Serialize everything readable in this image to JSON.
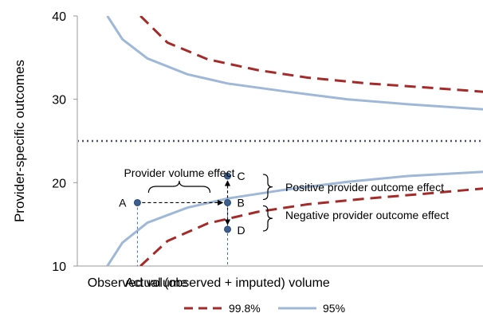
{
  "chart_data": {
    "type": "line",
    "title": "",
    "ylabel": "Provider-specific outcomes",
    "ylim": [
      10,
      40
    ],
    "y_ticks": [
      10,
      20,
      30,
      40
    ],
    "x_categories": [
      "Observed volume",
      "Actual (observed + imputed) volume"
    ],
    "grid": false,
    "legend_position": "bottom",
    "colors": {
      "dashed_series": "#a52a2a",
      "solid_series": "#9fb8d8",
      "reference_line": "#4a4f7a",
      "points": "#3c5f8f"
    },
    "reference_line_y": 25,
    "series": [
      {
        "name": "99.8%",
        "style": "dashed",
        "upper": [
          [
            0.33,
            40.0
          ],
          [
            0.6,
            36.8
          ],
          [
            1.0,
            34.8
          ],
          [
            1.5,
            33.5
          ],
          [
            2.0,
            32.6
          ],
          [
            2.6,
            31.9
          ],
          [
            3.2,
            31.4
          ],
          [
            3.75,
            30.9
          ]
        ],
        "lower": [
          [
            0.33,
            10.0
          ],
          [
            0.6,
            13.0
          ],
          [
            1.0,
            15.1
          ],
          [
            1.5,
            16.5
          ],
          [
            2.0,
            17.4
          ],
          [
            2.6,
            18.1
          ],
          [
            3.2,
            18.7
          ],
          [
            3.75,
            19.3
          ]
        ]
      },
      {
        "name": "95%",
        "style": "solid",
        "upper": [
          [
            0.0,
            40.0
          ],
          [
            0.15,
            37.2
          ],
          [
            0.4,
            34.9
          ],
          [
            0.8,
            33.0
          ],
          [
            1.2,
            31.9
          ],
          [
            1.8,
            30.9
          ],
          [
            2.4,
            30.0
          ],
          [
            3.0,
            29.4
          ],
          [
            3.75,
            28.8
          ]
        ],
        "lower": [
          [
            0.0,
            10.0
          ],
          [
            0.15,
            12.8
          ],
          [
            0.4,
            15.2
          ],
          [
            0.8,
            17.0
          ],
          [
            1.2,
            18.1
          ],
          [
            1.8,
            19.2
          ],
          [
            2.4,
            20.1
          ],
          [
            3.0,
            20.8
          ],
          [
            3.75,
            21.3
          ]
        ]
      }
    ],
    "points": [
      {
        "label": "A",
        "x": 0.3,
        "y": 17.6
      },
      {
        "label": "B",
        "x": 1.2,
        "y": 17.6
      },
      {
        "label": "C",
        "x": 1.2,
        "y": 20.8
      },
      {
        "label": "D",
        "x": 1.2,
        "y": 14.4
      }
    ],
    "xlim": [
      -0.3,
      3.75
    ],
    "annotations": {
      "provider_volume_effect": "Provider volume effect",
      "positive_effect": "Positive provider outcome  effect",
      "negative_effect": "Negative provider outcome effect"
    }
  }
}
